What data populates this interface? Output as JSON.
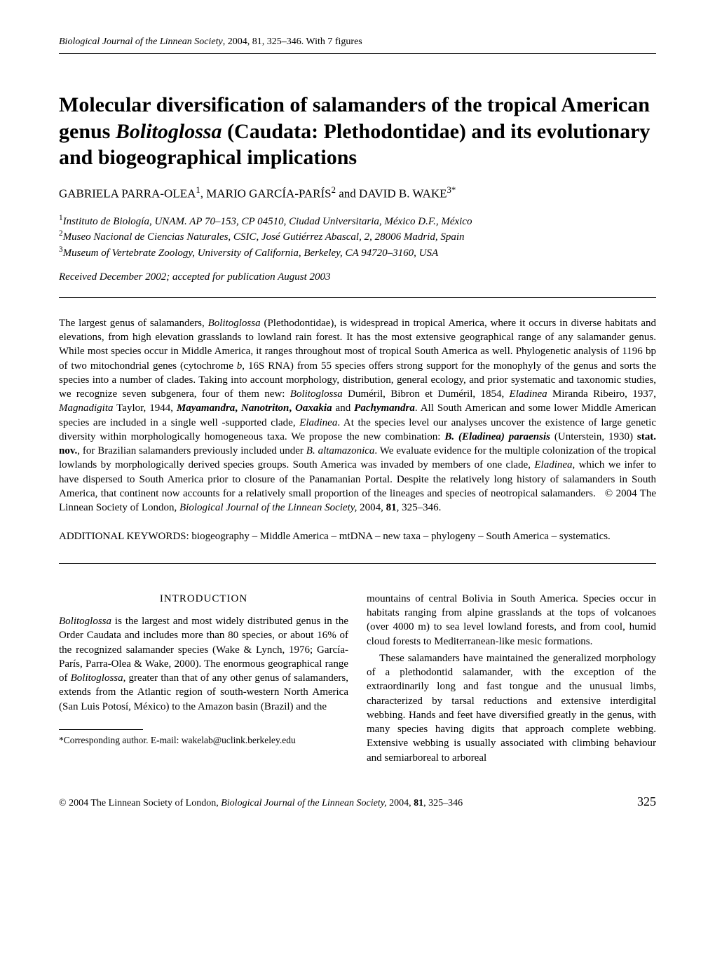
{
  "running_head": {
    "journal": "Biological Journal of the Linnean Society",
    "year_vol_pages": ", 2004, 81, 325–346. With 7 figures"
  },
  "title_plain": "Molecular diversification of salamanders of the tropical American genus ",
  "title_genus": "Bolitoglossa",
  "title_tail": " (Caudata: Plethodontidae) and its evolutionary and biogeographical implications",
  "authors": {
    "a1": "GABRIELA PARRA-OLEA",
    "a2": "MARIO GARCÍA-PARÍS",
    "a3": "DAVID B. WAKE",
    "sep1": ", ",
    "and": " and ",
    "s1": "1",
    "s2": "2",
    "s3": "3*"
  },
  "affils": {
    "l1_sup": "1",
    "l1": "Instituto de Biología, UNAM. AP 70–153, CP 04510, Ciudad Universitaria, México D.F., México",
    "l2_sup": "2",
    "l2": "Museo Nacional de Ciencias Naturales, CSIC, José Gutiérrez Abascal, 2, 28006 Madrid, Spain",
    "l3_sup": "3",
    "l3": "Museum of Vertebrate Zoology, University of California, Berkeley, CA 94720–3160, USA"
  },
  "received": "Received December 2002; accepted for publication August 2003",
  "abstract": "The largest genus of salamanders, <i>Bolitoglossa</i> (Plethodontidae), is widespread in tropical America, where it occurs in diverse habitats and elevations, from high elevation grasslands to lowland rain forest. It has the most extensive geographical range of any salamander genus. While most species occur in Middle America, it ranges throughout most of tropical South America as well. Phylogenetic analysis of 1196 bp of two mitochondrial genes (cytochrome <i>b</i>, 16S RNA) from 55 species offers strong support for the monophyly of the genus and sorts the species into a number of clades. Taking into account morphology, distribution, general ecology, and prior systematic and taxonomic studies, we recognize seven subgenera, four of them new: <i>Bolitoglossa</i> Duméril, Bibron et Duméril, 1854, <i>Eladinea</i> Miranda Ribeiro, 1937, <i>Magnadigita</i> Taylor, 1944, <b><i>Mayamandra</i>, <i>Nanotriton</i>, <i>Oaxakia</i></b> and <b><i>Pachymandra</i></b>. All South American and some lower Middle American species are included in a single well -supported clade, <i>Eladinea</i>. At the species level our analyses uncover the existence of large genetic diversity within morphologically homogeneous taxa. We propose the new combination: <b><i>B. (Eladinea) paraensis</i></b> (Unterstein, 1930) <b>stat. nov.</b>, for Brazilian salamanders previously included under <i>B. altamazonica</i>. We evaluate evidence for the multiple colonization of the tropical lowlands by morphologically derived species groups. South America was invaded by members of one clade, <i>Eladinea</i>, which we infer to have dispersed to South America prior to closure of the Panamanian Portal. Despite the relatively long history of salamanders in South America, that continent now accounts for a relatively small proportion of the lineages and species of neotropical salamanders. &nbsp; © 2004 The Linnean Society of London, <i>Biological Journal of the Linnean Society,</i> 2004, <b>81</b>, 325–346.",
  "keywords": "ADDITIONAL KEYWORDS: biogeography – Middle America – mtDNA – new taxa – phylogeny – South America – systematics.",
  "section": "INTRODUCTION",
  "col_left_p1": "<i>Bolitoglossa</i> is the largest and most widely distributed genus in the Order Caudata and includes more than 80 species, or about 16% of the recognized salamander species (Wake &amp; Lynch, 1976; García-París, Parra-Olea &amp; Wake, 2000). The enormous geographical range of <i>Bolitoglossa</i>, greater than that of any other genus of salamanders, extends from the Atlantic region of south-western North America (San Luis Potosí, México) to the Amazon basin (Brazil) and the",
  "col_right_p1": "mountains of central Bolivia in South America. Species occur in habitats ranging from alpine grasslands at the tops of volcanoes (over 4000 m) to sea level lowland forests, and from cool, humid cloud forests to Mediterranean-like mesic formations.",
  "col_right_p2": "These salamanders have maintained the generalized morphology of a plethodontid salamander, with the exception of the extraordinarily long and fast tongue and the unusual limbs, characterized by tarsal reductions and extensive interdigital webbing. Hands and feet have diversified greatly in the genus, with many species having digits that approach complete webbing. Extensive webbing is usually associated with climbing behaviour and semiarboreal to arboreal",
  "footnote": "*Corresponding author. E-mail: wakelab@uclink.berkeley.edu",
  "footer": {
    "left": "© 2004 The Linnean Society of London, ",
    "journal_i": "Biological Journal of the Linnean Society, ",
    "vol": "81",
    "tail": ", 325–346",
    "year_span": "2004, ",
    "page": "325"
  }
}
